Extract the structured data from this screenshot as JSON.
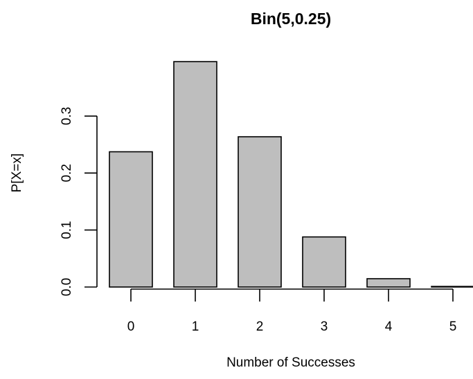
{
  "chart_data": {
    "type": "bar",
    "title": "Bin(5,0.25)",
    "xlabel": "Number of Successes",
    "ylabel": "P[X=x]",
    "categories": [
      "0",
      "1",
      "2",
      "3",
      "4",
      "5"
    ],
    "values": [
      0.2373,
      0.3955,
      0.2637,
      0.0879,
      0.0146,
      0.001
    ],
    "ylim": [
      0,
      0.4
    ],
    "yticks": [
      "0.0",
      "0.1",
      "0.2",
      "0.3"
    ],
    "xticks": [
      "0",
      "1",
      "2",
      "3",
      "4",
      "5"
    ],
    "grid": false,
    "bar_fill": "#bebebe",
    "bar_stroke": "#000000"
  }
}
